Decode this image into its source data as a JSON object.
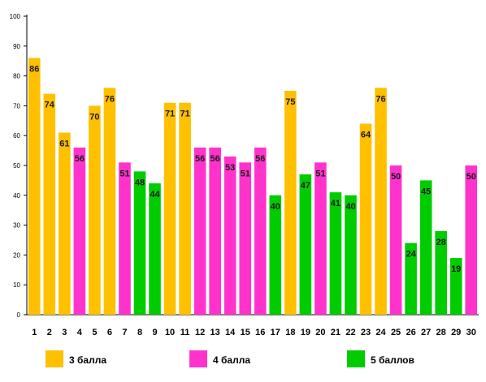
{
  "chart_data": {
    "type": "bar",
    "categories": [
      "1",
      "2",
      "3",
      "4",
      "5",
      "6",
      "7",
      "8",
      "9",
      "10",
      "11",
      "12",
      "13",
      "14",
      "15",
      "16",
      "17",
      "18",
      "19",
      "20",
      "21",
      "22",
      "23",
      "24",
      "25",
      "26",
      "27",
      "28",
      "29",
      "30"
    ],
    "values": [
      86,
      74,
      61,
      56,
      70,
      76,
      51,
      48,
      44,
      71,
      71,
      56,
      56,
      53,
      51,
      56,
      40,
      75,
      47,
      51,
      41,
      40,
      64,
      76,
      50,
      24,
      45,
      28,
      19,
      50
    ],
    "groups": [
      "3 балла",
      "3 балла",
      "3 балла",
      "4 балла",
      "3 балла",
      "3 балла",
      "4 балла",
      "5 баллов",
      "5 баллов",
      "3 балла",
      "3 балла",
      "4 балла",
      "4 балла",
      "4 балла",
      "4 балла",
      "4 балла",
      "5 баллов",
      "3 балла",
      "5 баллов",
      "4 балла",
      "5 баллов",
      "5 баллов",
      "3 балла",
      "3 балла",
      "4 балла",
      "5 баллов",
      "5 баллов",
      "5 баллов",
      "5 баллов",
      "4 балла"
    ],
    "ylim": [
      0,
      100
    ],
    "yticks": [
      "0",
      "10",
      "20",
      "30",
      "40",
      "50",
      "60",
      "70",
      "80",
      "90",
      "100"
    ],
    "grid": false,
    "legend_position": "bottom",
    "legend": [
      {
        "name": "3 балла",
        "color": "#FFC000"
      },
      {
        "name": "4 балла",
        "color": "#FF33CC"
      },
      {
        "name": "5 баллов",
        "color": "#00CC00"
      }
    ],
    "title": "",
    "xlabel": "",
    "ylabel": ""
  }
}
